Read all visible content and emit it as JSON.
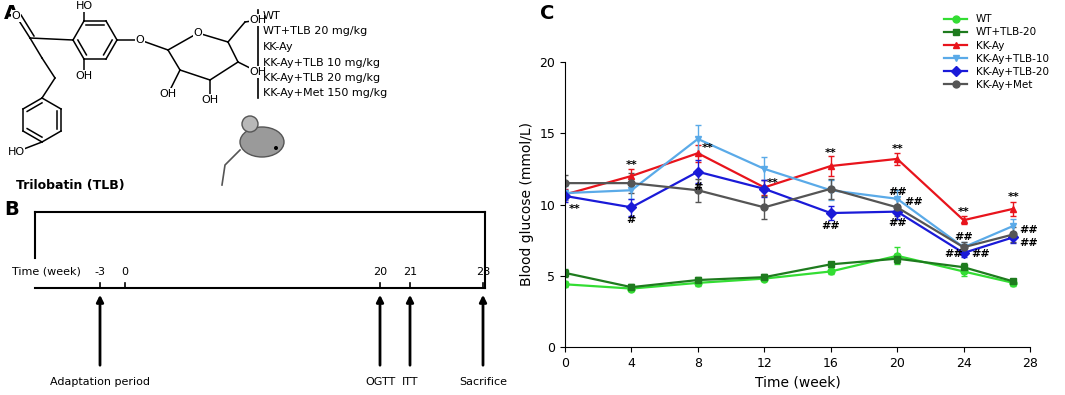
{
  "panel_labels": [
    "A",
    "B",
    "C"
  ],
  "structure": {
    "caption": "Trilobatin (TLB)",
    "atom_labels": [
      "O",
      "HO",
      "HO",
      "OH",
      "O",
      "O",
      "OH",
      "OH",
      "OH",
      "OH"
    ]
  },
  "timeline": {
    "groups": [
      "WT",
      "WT+TLB 20 mg/kg",
      "KK-Ay",
      "KK-Ay+TLB 10 mg/kg",
      "KK-Ay+TLB 20 mg/kg",
      "KK-Ay+Met 150 mg/kg"
    ],
    "axis_label": "Time (week)",
    "ticks": [
      -3,
      0,
      20,
      21,
      28
    ],
    "events": [
      {
        "time": -3,
        "label": "Adaptation period"
      },
      {
        "time": 20,
        "label": "OGTT"
      },
      {
        "time": 21,
        "label": "ITT"
      },
      {
        "time": 28,
        "label": "Sacrifice"
      }
    ]
  },
  "chart_data": {
    "type": "line",
    "x_label": "Time (week)",
    "y_label": "Blood glucose (mmol/L)",
    "x": [
      0,
      4,
      8,
      12,
      16,
      20,
      24,
      27
    ],
    "xlim": [
      0,
      28
    ],
    "xticks": [
      0,
      4,
      8,
      12,
      16,
      20,
      24,
      28
    ],
    "ylim": [
      0,
      20
    ],
    "yticks": [
      0,
      5,
      10,
      15,
      20
    ],
    "legend": "upper right",
    "series": [
      {
        "name": "WT",
        "color": "#33dd33",
        "marker": "circle",
        "values": [
          4.4,
          4.1,
          4.5,
          4.8,
          5.3,
          6.4,
          5.3,
          4.5
        ],
        "errors": [
          0.2,
          0.2,
          0.2,
          0.2,
          0.2,
          0.6,
          0.3,
          0.2
        ]
      },
      {
        "name": "WT+TLB-20",
        "color": "#1e7b1e",
        "marker": "square",
        "values": [
          5.2,
          4.2,
          4.7,
          4.9,
          5.8,
          6.2,
          5.6,
          4.6
        ],
        "errors": [
          0.3,
          0.2,
          0.2,
          0.2,
          0.2,
          0.3,
          0.3,
          0.2
        ]
      },
      {
        "name": "KK-Ay",
        "color": "#e8141c",
        "marker": "triangle_up",
        "values": [
          10.7,
          12.0,
          13.6,
          11.2,
          12.7,
          13.2,
          8.9,
          9.7
        ],
        "errors": [
          0.4,
          0.5,
          0.6,
          0.5,
          0.7,
          0.4,
          0.3,
          0.5
        ]
      },
      {
        "name": "KK-Ay+TLB-10",
        "color": "#5aaae8",
        "marker": "triangle_down",
        "values": [
          10.8,
          11.0,
          14.6,
          12.5,
          11.0,
          10.4,
          7.0,
          8.5
        ],
        "errors": [
          0.5,
          0.6,
          1.0,
          0.8,
          0.7,
          0.6,
          0.4,
          0.5
        ]
      },
      {
        "name": "KK-Ay+TLB-20",
        "color": "#1a1ad8",
        "marker": "diamond",
        "values": [
          10.6,
          9.8,
          12.3,
          11.1,
          9.4,
          9.5,
          6.6,
          7.7
        ],
        "errors": [
          0.4,
          0.6,
          0.8,
          0.6,
          0.5,
          0.5,
          0.3,
          0.4
        ]
      },
      {
        "name": "KK-Ay+Met",
        "color": "#555555",
        "marker": "circle",
        "values": [
          11.5,
          11.5,
          11.0,
          9.8,
          11.1,
          9.8,
          7.0,
          7.9
        ],
        "errors": [
          0.6,
          0.7,
          0.8,
          0.8,
          0.7,
          0.6,
          0.4,
          0.5
        ]
      }
    ],
    "annotations": [
      {
        "x": 0.6,
        "y": 9.7,
        "text": "**"
      },
      {
        "x": 4,
        "y": 12.8,
        "text": "**"
      },
      {
        "x": 8.6,
        "y": 14.0,
        "text": "**"
      },
      {
        "x": 12.5,
        "y": 11.5,
        "text": "**"
      },
      {
        "x": 16,
        "y": 13.6,
        "text": "**"
      },
      {
        "x": 20,
        "y": 13.9,
        "text": "**"
      },
      {
        "x": 24,
        "y": 9.5,
        "text": "**"
      },
      {
        "x": 27,
        "y": 10.5,
        "text": "**"
      },
      {
        "x": 4,
        "y": 8.9,
        "text": "#"
      },
      {
        "x": 8,
        "y": 11.2,
        "text": "#"
      },
      {
        "x": 16,
        "y": 8.5,
        "text": "##"
      },
      {
        "x": 20,
        "y": 10.9,
        "text": "##"
      },
      {
        "x": 21.0,
        "y": 10.2,
        "text": "##"
      },
      {
        "x": 20,
        "y": 8.7,
        "text": "##"
      },
      {
        "x": 24,
        "y": 7.7,
        "text": "##"
      },
      {
        "x": 23.4,
        "y": 6.5,
        "text": "##"
      },
      {
        "x": 25.0,
        "y": 6.5,
        "text": "##"
      },
      {
        "x": 27.9,
        "y": 8.2,
        "text": "##"
      },
      {
        "x": 27.9,
        "y": 7.3,
        "text": "##"
      }
    ]
  }
}
